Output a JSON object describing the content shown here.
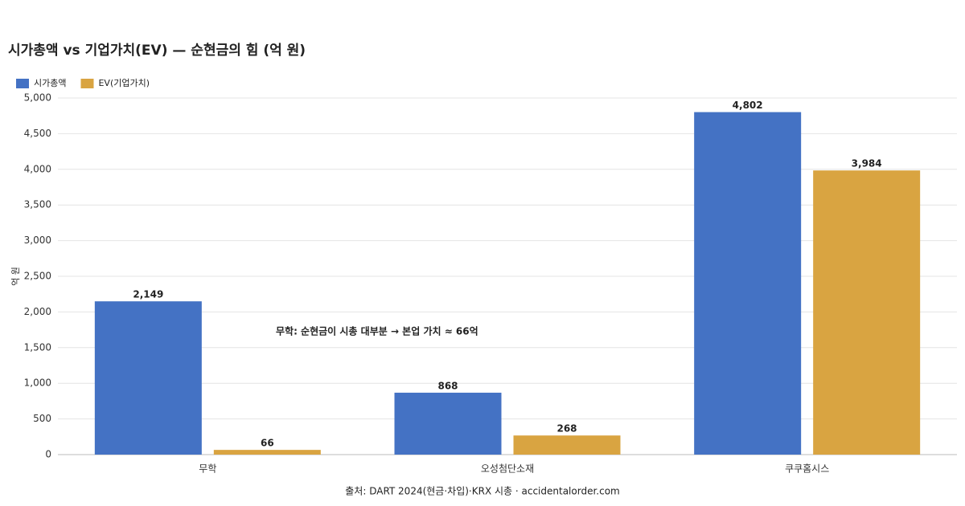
{
  "chart_data": {
    "type": "bar",
    "title": "시가총액 vs 기업가치(EV) — 순현금의 힘 (억 원)",
    "y_label": "억 원",
    "annotation": "무학: 순현금이 시총 대부분 → 본업 가치 ≈ 66억",
    "source": "출처: DART 2024(현금·차입)·KRX 시총 · accidentalorder.com",
    "categories": [
      "무학",
      "오성첨단소재",
      "쿠쿠홈시스"
    ],
    "series": [
      {
        "name": "시가총액",
        "color": "#4472c4",
        "label_color": "#3a66b8",
        "values": [
          2149,
          868,
          4802
        ],
        "value_labels": [
          "2,149",
          "868",
          "4,802"
        ]
      },
      {
        "name": "EV(기업가치)",
        "color": "#d9a441",
        "label_color": "#a0522d",
        "values": [
          66,
          268,
          3984
        ],
        "value_labels": [
          "66",
          "268",
          "3,984"
        ]
      }
    ],
    "ylim": [
      0,
      5000
    ],
    "yticks": [
      0,
      500,
      {
        "value": 1000,
        "label": "1,000"
      },
      {
        "value": 1500,
        "label": "1,500"
      },
      {
        "value": 2000,
        "label": "2,000"
      },
      {
        "value": 2500,
        "label": "2,500"
      },
      {
        "value": 3000,
        "label": "3,000"
      },
      {
        "value": 3500,
        "label": "3,500"
      },
      {
        "value": 4000,
        "label": "4,000"
      },
      {
        "value": 4500,
        "label": "4,500"
      },
      {
        "value": 5000,
        "label": "5,000"
      }
    ],
    "grid": true
  }
}
